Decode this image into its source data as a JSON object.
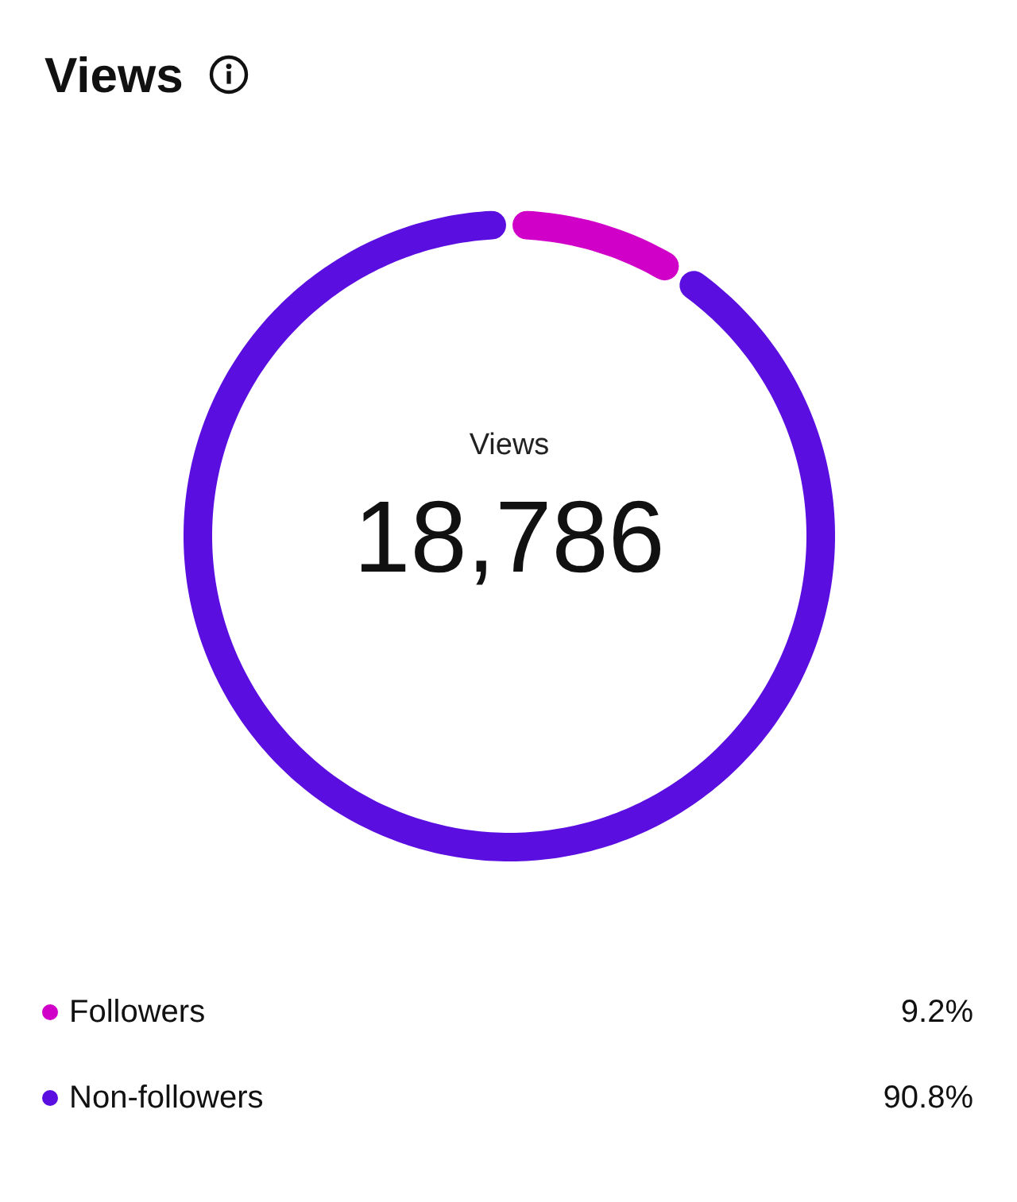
{
  "chart_data": {
    "type": "donut",
    "title": "Views",
    "categories": [
      "Followers",
      "Non-followers"
    ],
    "values": [
      9.2,
      90.8
    ],
    "colors": [
      "#d000c8",
      "#5a0fe0"
    ],
    "value_labels": [
      "9.2%",
      "90.8%"
    ],
    "annotations": [
      "Views",
      "18,786"
    ],
    "legend": "bottom"
  }
}
